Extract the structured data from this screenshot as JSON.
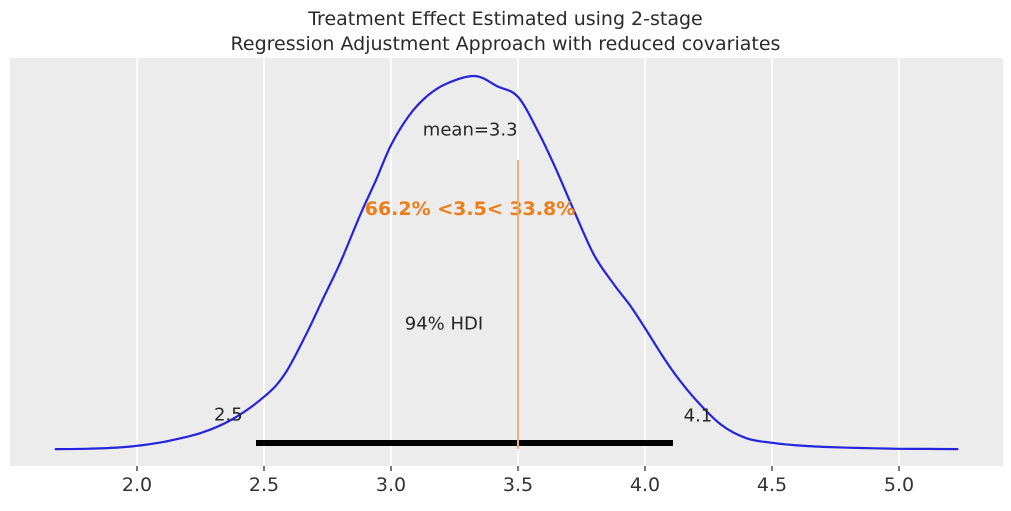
{
  "figure": {
    "title_line1": "Treatment Effect Estimated using 2-stage",
    "title_line2": "Regression Adjustment Approach with reduced covariates"
  },
  "annotations": {
    "mean_label": "mean=3.3",
    "ref_text": "66.2% <3.5< 33.8%",
    "hdi_text": "94% HDI",
    "hdi_lower_label": "2.5",
    "hdi_upper_label": "4.1"
  },
  "colors": {
    "curve": "#2424dd",
    "ref_line": "#f8ac70",
    "ref_text": "#ee7d17",
    "hdi_bar": "#000000",
    "plot_bg": "#ececec",
    "gridline": "#ffffff",
    "text": "#262626",
    "tick": "#777777",
    "tick_label": "#333333"
  },
  "chart_data": {
    "type": "area",
    "subtype": "posterior-kde",
    "title": "Treatment Effect Estimated using 2-stage\nRegression Adjustment Approach with reduced covariates",
    "xlabel": "",
    "ylabel": "",
    "xlim": [
      1.5,
      5.41
    ],
    "x_tick_values": [
      2.0,
      2.5,
      3.0,
      3.5,
      4.0,
      4.5,
      5.0
    ],
    "x_tick_labels": [
      "2.0",
      "2.5",
      "3.0",
      "3.5",
      "4.0",
      "4.5",
      "5.0"
    ],
    "grid": "vertical-white-gridlines",
    "legend": "none",
    "mean": 3.3,
    "ref_value": 3.5,
    "pct_below_ref": 66.2,
    "pct_above_ref": 33.8,
    "hdi_prob": 94,
    "hdi_lower": 2.5,
    "hdi_upper": 4.1,
    "hdi_bar_span": [
      2.47,
      4.11
    ],
    "curve_points": [
      [
        1.68,
        0.001
      ],
      [
        1.8,
        0.002
      ],
      [
        1.92,
        0.005
      ],
      [
        2.0,
        0.01
      ],
      [
        2.11,
        0.021
      ],
      [
        2.25,
        0.044
      ],
      [
        2.37,
        0.079
      ],
      [
        2.5,
        0.141
      ],
      [
        2.58,
        0.2
      ],
      [
        2.66,
        0.3
      ],
      [
        2.73,
        0.4
      ],
      [
        2.8,
        0.5
      ],
      [
        2.88,
        0.63
      ],
      [
        2.94,
        0.72
      ],
      [
        3.0,
        0.815
      ],
      [
        3.07,
        0.893
      ],
      [
        3.14,
        0.945
      ],
      [
        3.22,
        0.98
      ],
      [
        3.33,
        1.0
      ],
      [
        3.42,
        0.972
      ],
      [
        3.5,
        0.944
      ],
      [
        3.58,
        0.85
      ],
      [
        3.65,
        0.75
      ],
      [
        3.72,
        0.64
      ],
      [
        3.8,
        0.52
      ],
      [
        3.88,
        0.44
      ],
      [
        3.94,
        0.387
      ],
      [
        4.0,
        0.325
      ],
      [
        4.06,
        0.26
      ],
      [
        4.12,
        0.2
      ],
      [
        4.2,
        0.133
      ],
      [
        4.3,
        0.066
      ],
      [
        4.4,
        0.03
      ],
      [
        4.5,
        0.018
      ],
      [
        4.6,
        0.011
      ],
      [
        4.7,
        0.007
      ],
      [
        4.85,
        0.004
      ],
      [
        5.0,
        0.002
      ],
      [
        5.1,
        0.0015
      ],
      [
        5.23,
        0.001
      ]
    ]
  }
}
